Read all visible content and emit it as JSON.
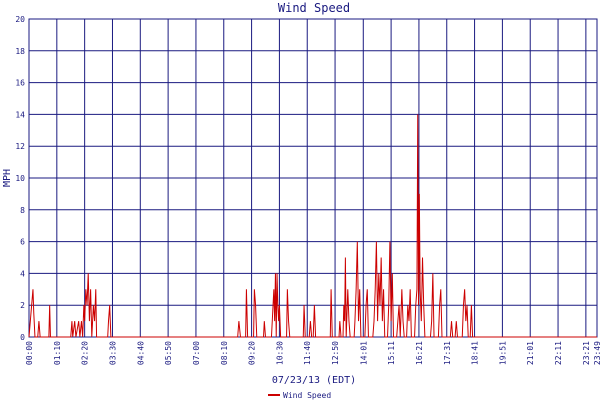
{
  "chart_data": {
    "type": "line",
    "title": "Wind Speed",
    "xlabel": "07/23/13 (EDT)",
    "ylabel": "MPH",
    "ylim": [
      0,
      20
    ],
    "xlim": [
      "00:00",
      "23:49"
    ],
    "yticks": [
      0,
      2,
      4,
      6,
      8,
      10,
      12,
      14,
      16,
      18,
      20
    ],
    "xticks": [
      "00:00",
      "01:10",
      "02:20",
      "03:30",
      "04:40",
      "05:50",
      "07:00",
      "08:10",
      "09:20",
      "10:30",
      "11:40",
      "12:50",
      "14:01",
      "15:11",
      "16:21",
      "17:31",
      "18:41",
      "19:51",
      "21:01",
      "22:11",
      "23:21",
      "23:49"
    ],
    "grid": true,
    "legend": "bottom-center",
    "colors": {
      "series": "#cc0000",
      "grid": "#1a1a80",
      "text": "#1a1a80"
    },
    "series": [
      {
        "name": "Wind Speed",
        "points": [
          [
            "00:00",
            0
          ],
          [
            "00:10",
            3
          ],
          [
            "00:12",
            1.5
          ],
          [
            "00:15",
            0
          ],
          [
            "00:22",
            0
          ],
          [
            "00:25",
            1
          ],
          [
            "00:28",
            0
          ],
          [
            "00:50",
            0
          ],
          [
            "00:52",
            2
          ],
          [
            "00:54",
            0
          ],
          [
            "01:45",
            0
          ],
          [
            "01:48",
            1
          ],
          [
            "01:50",
            0
          ],
          [
            "01:55",
            1
          ],
          [
            "01:58",
            0
          ],
          [
            "02:05",
            1
          ],
          [
            "02:08",
            0
          ],
          [
            "02:12",
            1
          ],
          [
            "02:15",
            0
          ],
          [
            "02:18",
            2
          ],
          [
            "02:20",
            1
          ],
          [
            "02:23",
            3
          ],
          [
            "02:26",
            2
          ],
          [
            "02:29",
            4
          ],
          [
            "02:32",
            1
          ],
          [
            "02:35",
            3
          ],
          [
            "02:38",
            0
          ],
          [
            "02:42",
            2
          ],
          [
            "02:45",
            1
          ],
          [
            "02:48",
            3
          ],
          [
            "02:50",
            0
          ],
          [
            "03:18",
            0
          ],
          [
            "03:20",
            1
          ],
          [
            "03:23",
            2
          ],
          [
            "03:26",
            0
          ],
          [
            "08:45",
            0
          ],
          [
            "08:48",
            1
          ],
          [
            "08:52",
            0
          ],
          [
            "09:05",
            0
          ],
          [
            "09:07",
            3
          ],
          [
            "09:10",
            0
          ],
          [
            "09:25",
            0
          ],
          [
            "09:27",
            3
          ],
          [
            "09:30",
            2
          ],
          [
            "09:33",
            0
          ],
          [
            "09:50",
            0
          ],
          [
            "09:52",
            1
          ],
          [
            "09:55",
            0
          ],
          [
            "10:10",
            0
          ],
          [
            "10:12",
            1
          ],
          [
            "10:14",
            2
          ],
          [
            "10:16",
            3
          ],
          [
            "10:18",
            1
          ],
          [
            "10:20",
            4
          ],
          [
            "10:22",
            0
          ],
          [
            "10:24",
            4
          ],
          [
            "10:26",
            2
          ],
          [
            "10:28",
            1
          ],
          [
            "10:30",
            2
          ],
          [
            "10:33",
            0
          ],
          [
            "10:48",
            0
          ],
          [
            "10:50",
            3
          ],
          [
            "10:53",
            1
          ],
          [
            "10:56",
            0
          ],
          [
            "11:30",
            0
          ],
          [
            "11:32",
            2
          ],
          [
            "11:35",
            0
          ],
          [
            "11:45",
            0
          ],
          [
            "11:48",
            1
          ],
          [
            "11:51",
            0
          ],
          [
            "11:55",
            0
          ],
          [
            "11:58",
            2
          ],
          [
            "12:01",
            0
          ],
          [
            "12:38",
            0
          ],
          [
            "12:40",
            3
          ],
          [
            "12:43",
            0
          ],
          [
            "13:00",
            0
          ],
          [
            "13:02",
            1
          ],
          [
            "13:05",
            0
          ],
          [
            "13:10",
            0
          ],
          [
            "13:12",
            2
          ],
          [
            "13:14",
            1
          ],
          [
            "13:16",
            5
          ],
          [
            "13:18",
            0
          ],
          [
            "13:22",
            3
          ],
          [
            "13:25",
            1
          ],
          [
            "13:28",
            0
          ],
          [
            "13:38",
            0
          ],
          [
            "13:40",
            1
          ],
          [
            "13:43",
            3
          ],
          [
            "13:46",
            6
          ],
          [
            "13:49",
            1
          ],
          [
            "13:52",
            3
          ],
          [
            "13:55",
            0
          ],
          [
            "14:05",
            0
          ],
          [
            "14:08",
            2
          ],
          [
            "14:11",
            3
          ],
          [
            "14:14",
            0
          ],
          [
            "14:25",
            0
          ],
          [
            "14:28",
            1
          ],
          [
            "14:31",
            3
          ],
          [
            "14:34",
            6
          ],
          [
            "14:37",
            1
          ],
          [
            "14:40",
            4
          ],
          [
            "14:43",
            2
          ],
          [
            "14:46",
            5
          ],
          [
            "14:49",
            1
          ],
          [
            "14:52",
            3
          ],
          [
            "14:55",
            0
          ],
          [
            "15:02",
            0
          ],
          [
            "15:05",
            2
          ],
          [
            "15:08",
            6
          ],
          [
            "15:11",
            1
          ],
          [
            "15:14",
            4
          ],
          [
            "15:17",
            0
          ],
          [
            "15:25",
            0
          ],
          [
            "15:28",
            1
          ],
          [
            "15:31",
            2
          ],
          [
            "15:34",
            0
          ],
          [
            "15:38",
            3
          ],
          [
            "15:41",
            1
          ],
          [
            "15:44",
            0
          ],
          [
            "15:50",
            0
          ],
          [
            "15:53",
            2
          ],
          [
            "15:56",
            1
          ],
          [
            "15:59",
            3
          ],
          [
            "16:02",
            0
          ],
          [
            "16:10",
            0
          ],
          [
            "16:13",
            2
          ],
          [
            "16:16",
            3
          ],
          [
            "16:18",
            14
          ],
          [
            "16:20",
            2
          ],
          [
            "16:22",
            9
          ],
          [
            "16:24",
            3
          ],
          [
            "16:27",
            1
          ],
          [
            "16:30",
            5
          ],
          [
            "16:33",
            2
          ],
          [
            "16:36",
            0
          ],
          [
            "16:50",
            0
          ],
          [
            "16:53",
            1
          ],
          [
            "16:56",
            4
          ],
          [
            "16:59",
            0
          ],
          [
            "17:10",
            0
          ],
          [
            "17:13",
            2
          ],
          [
            "17:16",
            3
          ],
          [
            "17:19",
            0
          ],
          [
            "17:40",
            0
          ],
          [
            "17:43",
            1
          ],
          [
            "17:46",
            0
          ],
          [
            "17:52",
            0
          ],
          [
            "17:55",
            1
          ],
          [
            "17:58",
            0
          ],
          [
            "18:10",
            0
          ],
          [
            "18:13",
            2
          ],
          [
            "18:16",
            3
          ],
          [
            "18:19",
            1
          ],
          [
            "18:22",
            2
          ],
          [
            "18:25",
            0
          ],
          [
            "18:30",
            0
          ],
          [
            "18:33",
            2
          ],
          [
            "18:36",
            0
          ],
          [
            "23:49",
            0
          ]
        ]
      }
    ]
  }
}
